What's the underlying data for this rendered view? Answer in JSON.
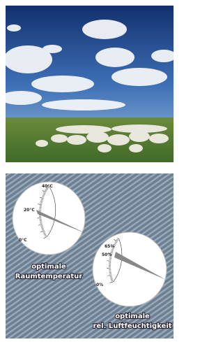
{
  "gauges": [
    {
      "scale_labels": [
        "40°C",
        "20°C",
        "0°C"
      ],
      "caption": [
        "optimale",
        "Raumtemperatur"
      ]
    },
    {
      "scale_labels": [
        "65%",
        "50%",
        "0%"
      ],
      "caption": [
        "optimale",
        "rel. Luftfeuchtigkeit"
      ]
    }
  ]
}
